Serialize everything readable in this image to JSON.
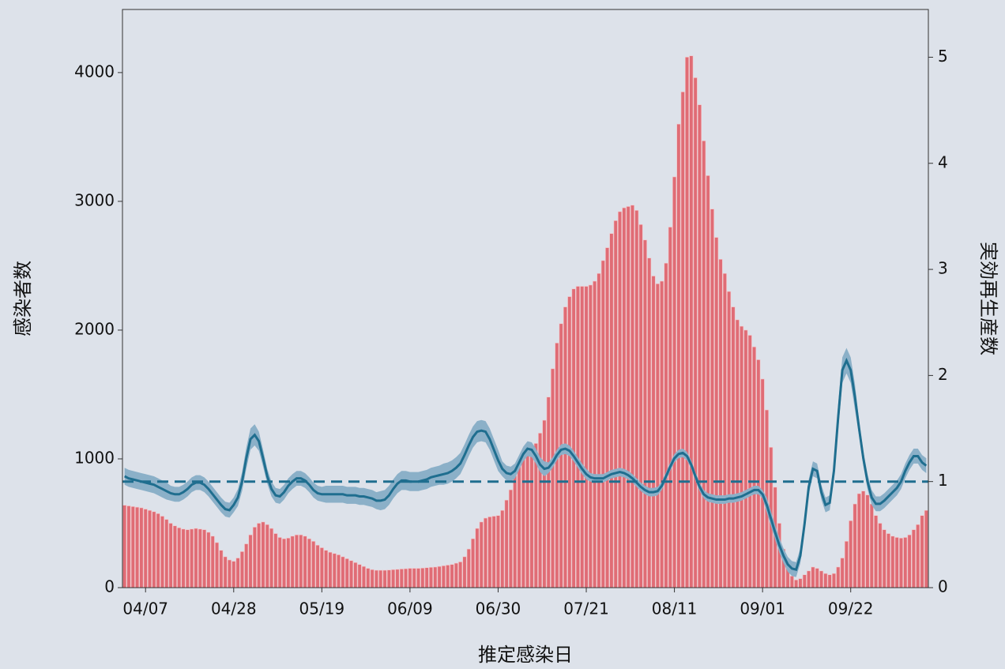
{
  "chart_data": {
    "type": "bar",
    "xlabel": "推定感染日",
    "ylabel": "感染者数",
    "y2label": "実効再生産数",
    "categories": [
      null,
      null,
      null,
      null,
      null,
      "04/07",
      null,
      null,
      null,
      null,
      null,
      null,
      null,
      null,
      null,
      null,
      null,
      null,
      null,
      null,
      null,
      null,
      null,
      null,
      null,
      null,
      "04/28",
      null,
      null,
      null,
      null,
      null,
      null,
      null,
      null,
      null,
      null,
      null,
      null,
      null,
      null,
      null,
      null,
      null,
      null,
      null,
      null,
      "05/19",
      null,
      null,
      null,
      null,
      null,
      null,
      null,
      null,
      null,
      null,
      null,
      null,
      null,
      null,
      null,
      null,
      null,
      null,
      null,
      null,
      "06/09",
      null,
      null,
      null,
      null,
      null,
      null,
      null,
      null,
      null,
      null,
      null,
      null,
      null,
      null,
      null,
      null,
      null,
      null,
      null,
      null,
      "06/30",
      null,
      null,
      null,
      null,
      null,
      null,
      null,
      null,
      null,
      null,
      null,
      null,
      null,
      null,
      null,
      null,
      null,
      null,
      null,
      null,
      "07/21",
      null,
      null,
      null,
      null,
      null,
      null,
      null,
      null,
      null,
      null,
      null,
      null,
      null,
      null,
      null,
      null,
      null,
      null,
      null,
      null,
      "08/11",
      null,
      null,
      null,
      null,
      null,
      null,
      null,
      null,
      null,
      null,
      null,
      null,
      null,
      null,
      null,
      null,
      null,
      null,
      null,
      null,
      "09/01",
      null,
      null,
      null,
      null,
      null,
      null,
      null,
      null,
      null,
      null,
      null,
      null,
      null,
      null,
      null,
      null,
      null,
      null,
      null,
      null,
      "09/22",
      null,
      null,
      null,
      null,
      null,
      null,
      null,
      null,
      null,
      null,
      null,
      null,
      null,
      null,
      null,
      null,
      null,
      null
    ],
    "ylim": [
      0,
      4490
    ],
    "yticks": [
      0,
      1000,
      2000,
      3000,
      4000
    ],
    "y2lim": [
      0,
      5.45
    ],
    "y2ticks": [
      0,
      1,
      2,
      3,
      4,
      5
    ],
    "series": [
      {
        "type": "bar",
        "color": "#e06c75",
        "values": [
          640,
          635,
          630,
          625,
          620,
          610,
          600,
          590,
          575,
          555,
          530,
          500,
          480,
          465,
          455,
          450,
          455,
          460,
          455,
          450,
          430,
          400,
          350,
          290,
          240,
          215,
          205,
          230,
          280,
          340,
          410,
          470,
          500,
          510,
          490,
          460,
          420,
          390,
          380,
          385,
          400,
          410,
          410,
          400,
          380,
          360,
          330,
          310,
          290,
          275,
          265,
          255,
          240,
          225,
          210,
          195,
          180,
          165,
          150,
          140,
          135,
          135,
          135,
          137,
          140,
          142,
          145,
          147,
          150,
          150,
          150,
          152,
          155,
          158,
          160,
          165,
          170,
          175,
          180,
          190,
          200,
          240,
          300,
          380,
          460,
          510,
          540,
          550,
          555,
          560,
          600,
          680,
          760,
          870,
          960,
          1040,
          1080,
          1100,
          1120,
          1200,
          1300,
          1480,
          1700,
          1900,
          2050,
          2180,
          2260,
          2320,
          2340,
          2340,
          2340,
          2350,
          2380,
          2440,
          2540,
          2640,
          2750,
          2850,
          2920,
          2950,
          2960,
          2970,
          2930,
          2820,
          2700,
          2560,
          2420,
          2360,
          2380,
          2520,
          2800,
          3190,
          3600,
          3850,
          4120,
          4130,
          3960,
          3750,
          3470,
          3200,
          2940,
          2720,
          2550,
          2440,
          2300,
          2180,
          2080,
          2030,
          2000,
          1960,
          1870,
          1770,
          1620,
          1380,
          1090,
          780,
          500,
          300,
          170,
          90,
          60,
          70,
          100,
          130,
          160,
          150,
          130,
          110,
          100,
          110,
          160,
          230,
          360,
          520,
          650,
          730,
          750,
          720,
          650,
          560,
          500,
          450,
          420,
          400,
          390,
          385,
          390,
          410,
          450,
          490,
          560,
          600
        ]
      },
      {
        "type": "line",
        "axis": "y2",
        "color": "#1f6e8f",
        "band_color": "#8bb0c8",
        "values": [
          1.05,
          1.03,
          1.02,
          1.01,
          1.0,
          0.99,
          0.98,
          0.97,
          0.95,
          0.93,
          0.91,
          0.89,
          0.88,
          0.88,
          0.9,
          0.93,
          0.97,
          0.99,
          0.99,
          0.97,
          0.93,
          0.88,
          0.83,
          0.78,
          0.74,
          0.73,
          0.78,
          0.85,
          1.0,
          1.22,
          1.4,
          1.44,
          1.38,
          1.22,
          1.05,
          0.93,
          0.87,
          0.86,
          0.9,
          0.96,
          1.0,
          1.03,
          1.03,
          1.01,
          0.97,
          0.92,
          0.89,
          0.88,
          0.88,
          0.88,
          0.88,
          0.88,
          0.88,
          0.87,
          0.87,
          0.87,
          0.86,
          0.86,
          0.85,
          0.84,
          0.82,
          0.82,
          0.83,
          0.87,
          0.93,
          0.98,
          1.01,
          1.01,
          1.0,
          1.0,
          1.0,
          1.01,
          1.02,
          1.04,
          1.05,
          1.06,
          1.07,
          1.08,
          1.1,
          1.13,
          1.17,
          1.25,
          1.34,
          1.42,
          1.47,
          1.48,
          1.47,
          1.4,
          1.3,
          1.2,
          1.12,
          1.08,
          1.07,
          1.1,
          1.18,
          1.26,
          1.31,
          1.3,
          1.24,
          1.16,
          1.12,
          1.13,
          1.18,
          1.25,
          1.3,
          1.31,
          1.29,
          1.24,
          1.18,
          1.12,
          1.07,
          1.04,
          1.03,
          1.03,
          1.03,
          1.05,
          1.07,
          1.08,
          1.09,
          1.08,
          1.06,
          1.03,
          0.99,
          0.95,
          0.92,
          0.9,
          0.9,
          0.91,
          0.96,
          1.05,
          1.14,
          1.22,
          1.26,
          1.27,
          1.24,
          1.16,
          1.05,
          0.95,
          0.88,
          0.85,
          0.84,
          0.83,
          0.83,
          0.83,
          0.84,
          0.84,
          0.85,
          0.86,
          0.88,
          0.9,
          0.92,
          0.92,
          0.88,
          0.78,
          0.65,
          0.52,
          0.4,
          0.3,
          0.22,
          0.18,
          0.17,
          0.3,
          0.6,
          0.95,
          1.12,
          1.1,
          0.9,
          0.78,
          0.8,
          1.1,
          1.6,
          2.05,
          2.14,
          2.05,
          1.8,
          1.5,
          1.22,
          1.0,
          0.85,
          0.79,
          0.79,
          0.82,
          0.86,
          0.9,
          0.94,
          1.0,
          1.1,
          1.18,
          1.24,
          1.24,
          1.18,
          1.15
        ],
        "error": [
          0.08,
          0.08,
          0.08,
          0.08,
          0.08,
          0.08,
          0.08,
          0.08,
          0.08,
          0.08,
          0.08,
          0.07,
          0.07,
          0.07,
          0.07,
          0.07,
          0.07,
          0.07,
          0.07,
          0.07,
          0.07,
          0.07,
          0.07,
          0.07,
          0.07,
          0.07,
          0.07,
          0.08,
          0.09,
          0.1,
          0.1,
          0.1,
          0.09,
          0.08,
          0.07,
          0.07,
          0.07,
          0.07,
          0.07,
          0.07,
          0.07,
          0.07,
          0.07,
          0.07,
          0.07,
          0.07,
          0.07,
          0.07,
          0.08,
          0.08,
          0.08,
          0.08,
          0.08,
          0.08,
          0.08,
          0.08,
          0.08,
          0.08,
          0.08,
          0.08,
          0.08,
          0.09,
          0.09,
          0.09,
          0.09,
          0.09,
          0.09,
          0.09,
          0.09,
          0.09,
          0.09,
          0.09,
          0.09,
          0.09,
          0.09,
          0.09,
          0.1,
          0.1,
          0.1,
          0.1,
          0.1,
          0.1,
          0.1,
          0.1,
          0.1,
          0.1,
          0.1,
          0.1,
          0.1,
          0.1,
          0.07,
          0.07,
          0.07,
          0.07,
          0.07,
          0.07,
          0.07,
          0.07,
          0.07,
          0.07,
          0.07,
          0.05,
          0.05,
          0.05,
          0.05,
          0.05,
          0.05,
          0.05,
          0.05,
          0.05,
          0.05,
          0.04,
          0.04,
          0.04,
          0.04,
          0.04,
          0.04,
          0.04,
          0.04,
          0.04,
          0.04,
          0.04,
          0.04,
          0.04,
          0.04,
          0.04,
          0.04,
          0.04,
          0.04,
          0.04,
          0.04,
          0.04,
          0.04,
          0.04,
          0.04,
          0.04,
          0.04,
          0.04,
          0.04,
          0.04,
          0.04,
          0.04,
          0.04,
          0.04,
          0.04,
          0.04,
          0.04,
          0.04,
          0.04,
          0.04,
          0.04,
          0.04,
          0.04,
          0.07,
          0.07,
          0.07,
          0.07,
          0.07,
          0.07,
          0.07,
          0.07,
          0.07,
          0.07,
          0.07,
          0.07,
          0.07,
          0.07,
          0.07,
          0.07,
          0.07,
          0.12,
          0.12,
          0.12,
          0.12,
          0.12,
          0.07,
          0.07,
          0.07,
          0.07,
          0.07,
          0.07,
          0.07,
          0.07,
          0.07,
          0.07,
          0.07,
          0.07,
          0.07,
          0.07,
          0.07,
          0.07,
          0.07
        ]
      }
    ],
    "reference_line": {
      "value": 1,
      "axis": "y2",
      "color": "#1f6e8f",
      "dashed": true
    }
  }
}
